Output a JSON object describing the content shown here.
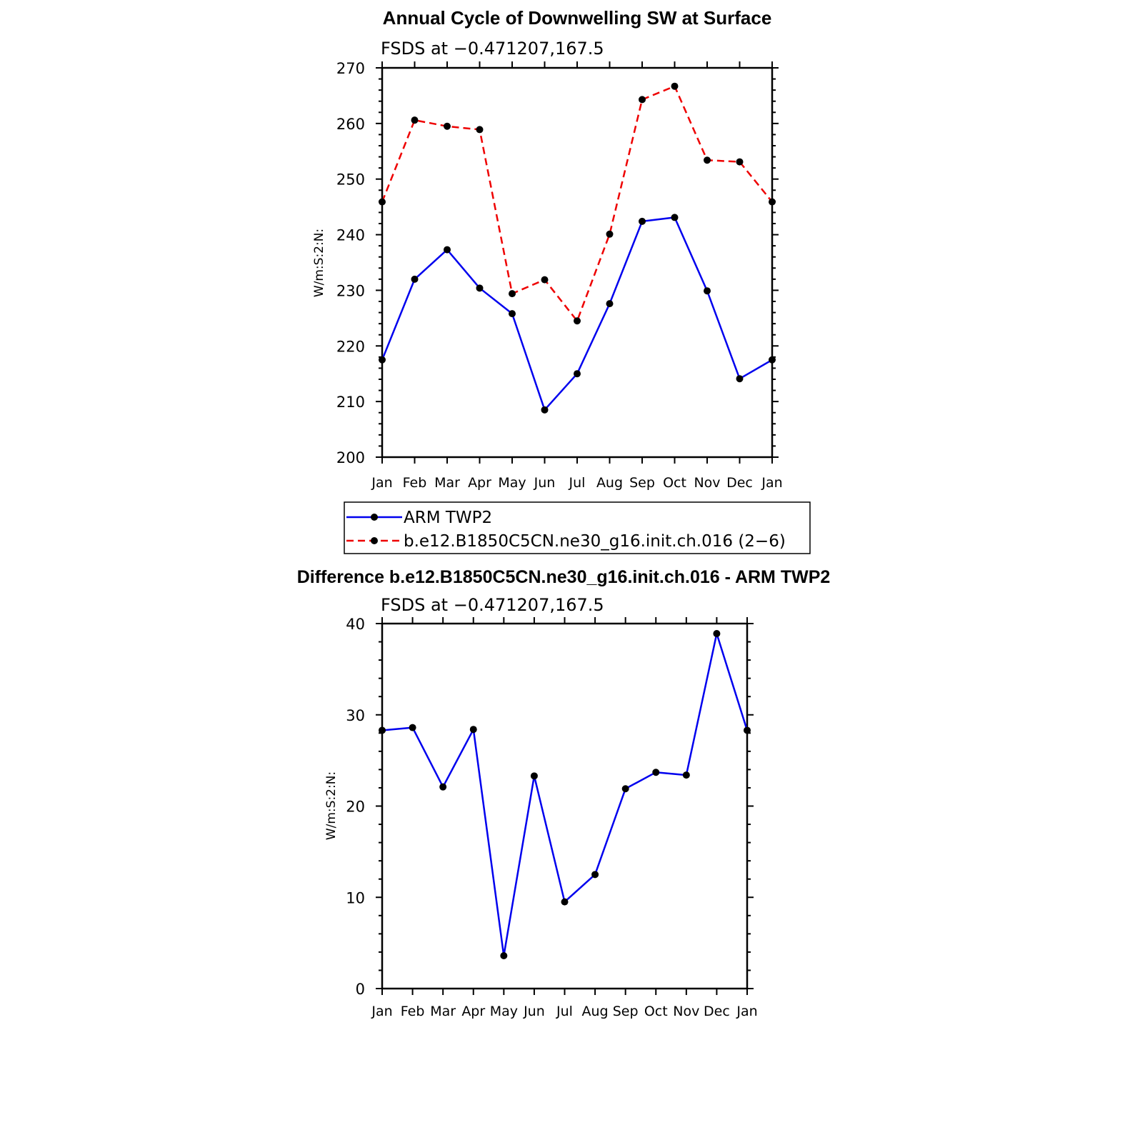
{
  "colors": {
    "blue": "#0000ee",
    "red": "#ee0000",
    "marker": "#000000"
  },
  "legend": {
    "placement": "below top chart",
    "entries": [
      {
        "label": "ARM TWP2",
        "color": "#0000ee",
        "dash": "solid"
      },
      {
        "label": "b.e12.B1850C5CN.ne30_g16.init.ch.016 (2−6)",
        "color": "#ee0000",
        "dash": "dashed"
      }
    ]
  },
  "chart_data": [
    {
      "type": "line",
      "title": "Annual Cycle of Downwelling SW at Surface",
      "subtitle": "FSDS at −0.471207,167.5",
      "xlabel": "",
      "ylabel": "W/m:S:2:N:",
      "categories": [
        "Jan",
        "Feb",
        "Mar",
        "Apr",
        "May",
        "Jun",
        "Jul",
        "Aug",
        "Sep",
        "Oct",
        "Nov",
        "Dec",
        "Jan"
      ],
      "ylim": [
        200,
        270
      ],
      "yticks": [
        200,
        210,
        220,
        230,
        240,
        250,
        260,
        270
      ],
      "grid": false,
      "series": [
        {
          "name": "ARM TWP2",
          "color": "#0000ee",
          "dash": "solid",
          "values": [
            217.5,
            232.0,
            237.3,
            230.4,
            225.8,
            208.5,
            215.0,
            227.6,
            242.4,
            243.1,
            229.9,
            214.1,
            217.5
          ]
        },
        {
          "name": "b.e12.B1850C5CN.ne30_g16.init.ch.016 (2−6)",
          "color": "#ee0000",
          "dash": "dashed",
          "values": [
            245.9,
            260.6,
            259.5,
            258.9,
            229.4,
            231.9,
            224.5,
            240.1,
            264.3,
            266.7,
            253.4,
            253.1,
            245.9
          ]
        }
      ]
    },
    {
      "type": "line",
      "title": "Difference b.e12.B1850C5CN.ne30_g16.init.ch.016 - ARM TWP2",
      "subtitle": "FSDS at −0.471207,167.5",
      "xlabel": "",
      "ylabel": "W/m:S:2:N:",
      "categories": [
        "Jan",
        "Feb",
        "Mar",
        "Apr",
        "May",
        "Jun",
        "Jul",
        "Aug",
        "Sep",
        "Oct",
        "Nov",
        "Dec",
        "Jan"
      ],
      "ylim": [
        0,
        40
      ],
      "yticks": [
        0,
        10,
        20,
        30,
        40
      ],
      "grid": false,
      "series": [
        {
          "color": "#0000ee",
          "dash": "solid",
          "values": [
            28.3,
            28.6,
            22.1,
            28.4,
            3.6,
            23.3,
            9.5,
            12.5,
            21.9,
            23.7,
            23.4,
            38.9,
            28.3
          ]
        }
      ]
    }
  ]
}
